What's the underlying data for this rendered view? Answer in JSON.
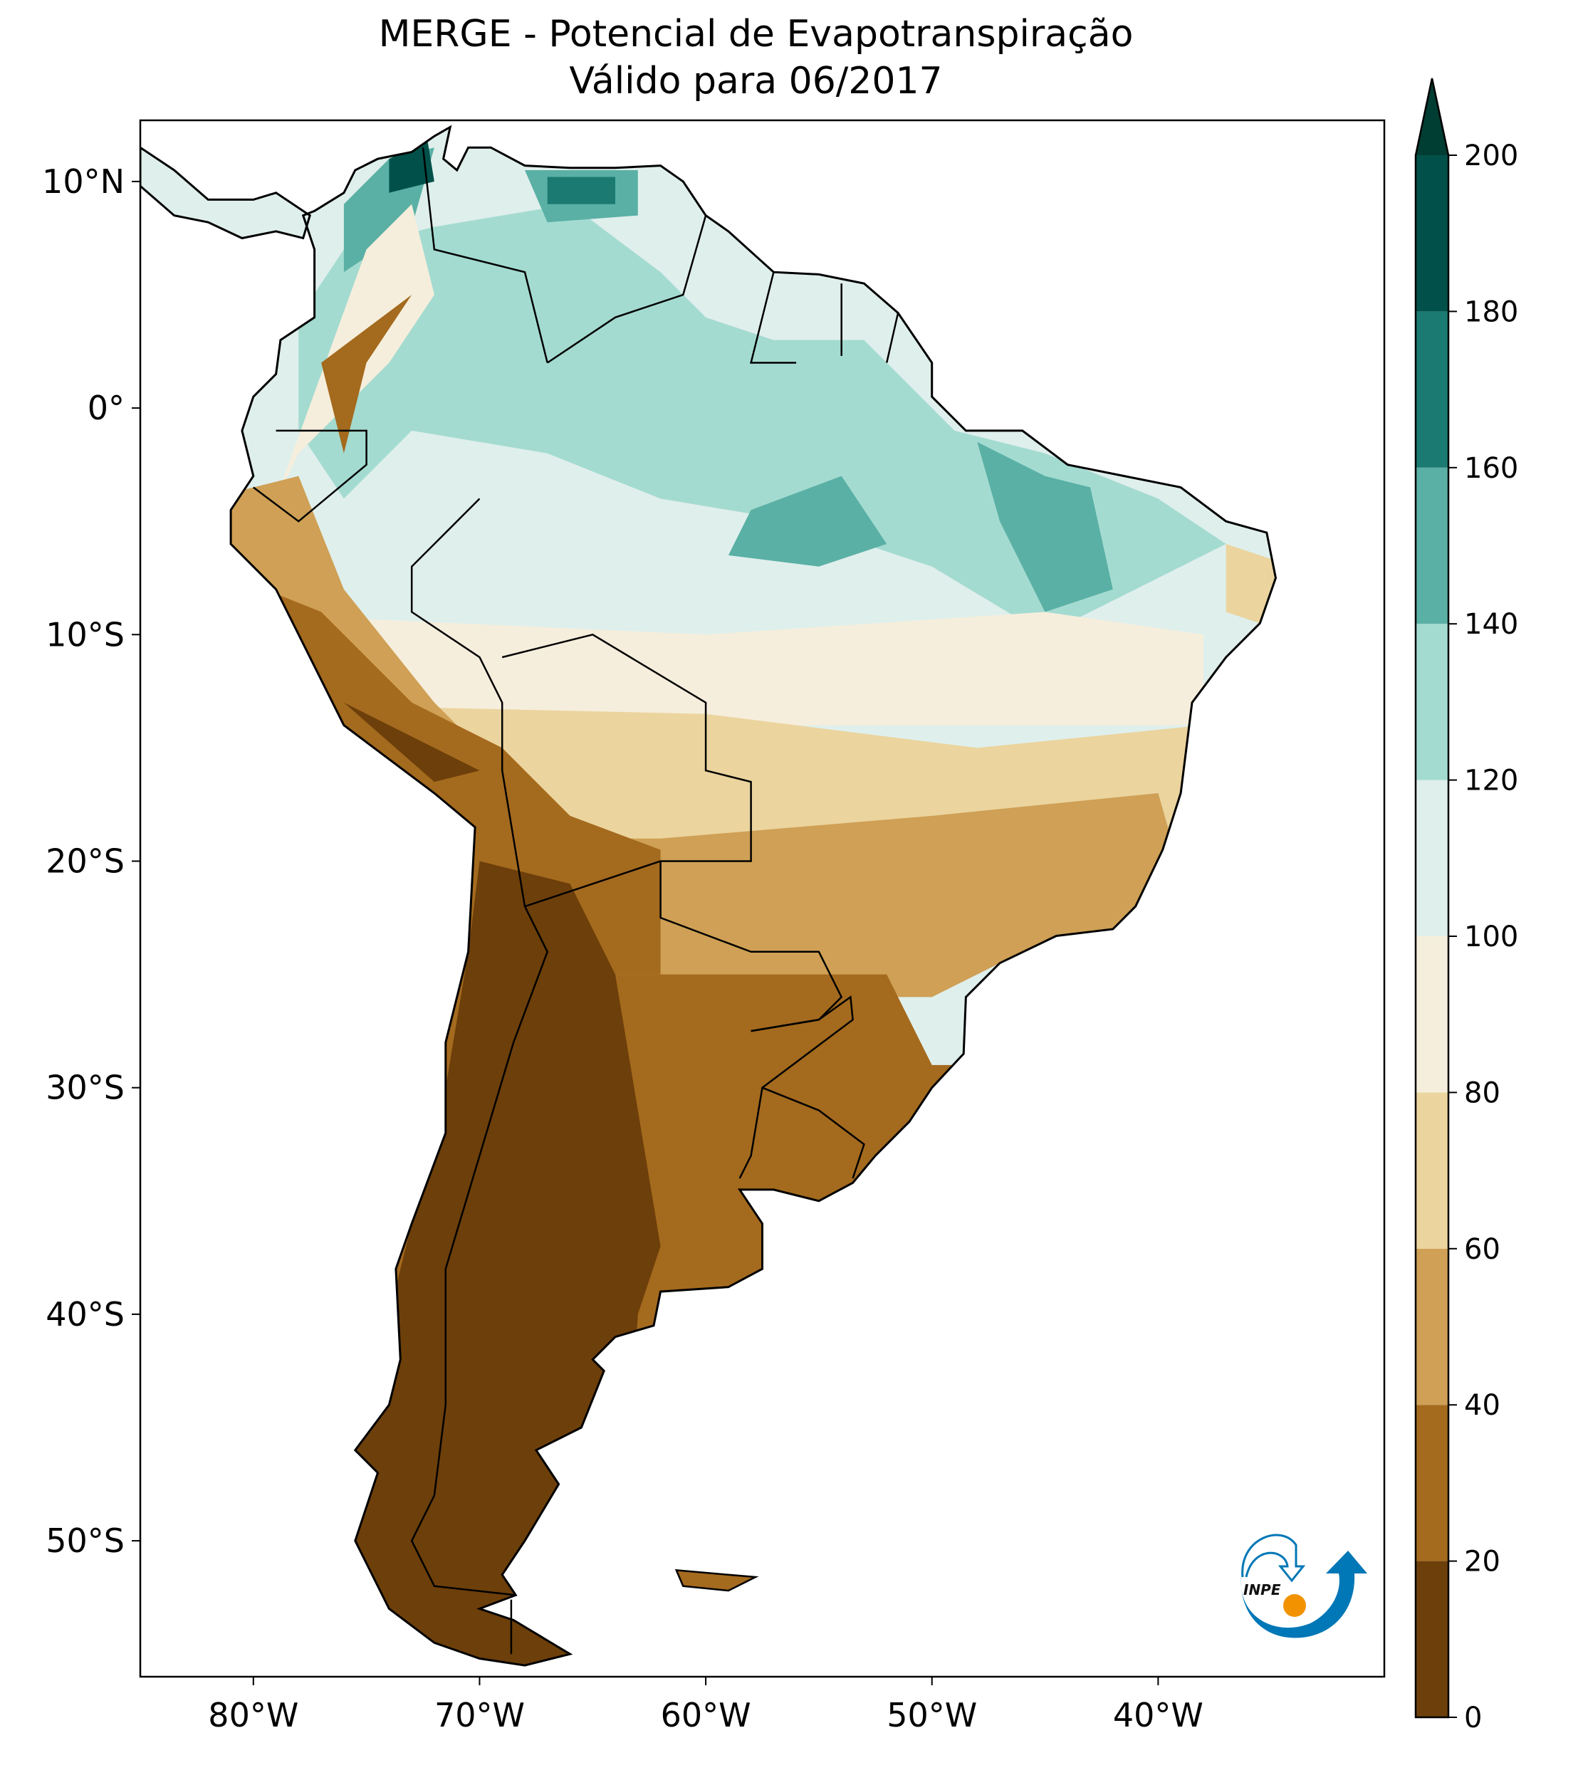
{
  "title": {
    "line1": "MERGE - Potencial de Evapotranspiração",
    "line2": "Válido para 06/2017"
  },
  "map": {
    "extent": {
      "lon": [
        -85,
        -30
      ],
      "lat": [
        -56,
        12.7
      ]
    },
    "x_ticks": [
      {
        "lon": -80,
        "label": "80°W"
      },
      {
        "lon": -70,
        "label": "70°W"
      },
      {
        "lon": -60,
        "label": "60°W"
      },
      {
        "lon": -50,
        "label": "50°W"
      },
      {
        "lon": -40,
        "label": "40°W"
      }
    ],
    "y_ticks": [
      {
        "lat": 10,
        "label": "10°N"
      },
      {
        "lat": 0,
        "label": "0°"
      },
      {
        "lat": -10,
        "label": "10°S"
      },
      {
        "lat": -20,
        "label": "20°S"
      },
      {
        "lat": -30,
        "label": "30°S"
      },
      {
        "lat": -40,
        "label": "40°S"
      },
      {
        "lat": -50,
        "label": "50°S"
      }
    ]
  },
  "colorbar": {
    "levels": [
      0,
      20,
      40,
      60,
      80,
      100,
      120,
      140,
      160,
      180,
      200
    ],
    "labels": [
      "0",
      "20",
      "40",
      "60",
      "80",
      "100",
      "120",
      "140",
      "160",
      "180",
      "200"
    ],
    "colors": [
      "#6d3f0a",
      "#a46a1e",
      "#cfa055",
      "#ebd49e",
      "#f6eedc",
      "#dfefec",
      "#a4dbd1",
      "#5ab0a5",
      "#1b7b73",
      "#01514a"
    ],
    "extend_color": "#003d33",
    "extend": "max"
  },
  "logo": {
    "text": "INPE",
    "blue": "#0077b6",
    "orange": "#f39200"
  }
}
